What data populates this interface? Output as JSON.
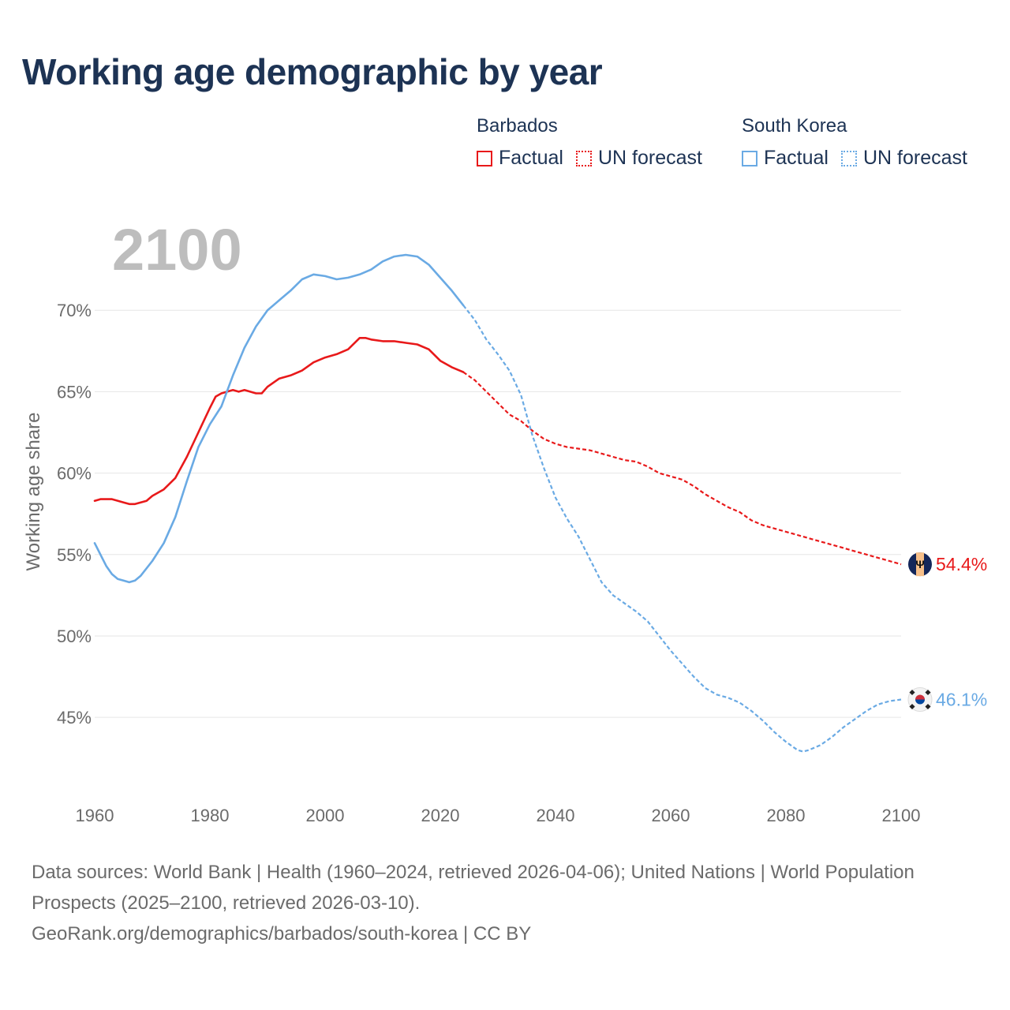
{
  "title": "Working age demographic by year",
  "legend": {
    "groups": [
      {
        "country": "Barbados",
        "factual_label": "Factual",
        "forecast_label": "UN forecast",
        "color": "#e8191a"
      },
      {
        "country": "South Korea",
        "factual_label": "Factual",
        "forecast_label": "UN forecast",
        "color": "#6aaae4"
      }
    ]
  },
  "year_label": "2100",
  "footer": {
    "sources": "Data sources: World Bank | Health (1960–2024, retrieved 2026-04-06); United Nations | World Population Prospects (2025–2100, retrieved 2026-03-10).",
    "credit": "GeoRank.org/demographics/barbados/south-korea | CC BY"
  },
  "chart_data": {
    "type": "line",
    "title": "Working age demographic by year",
    "xlabel": "",
    "ylabel": "Working age share",
    "xlim": [
      1960,
      2100
    ],
    "ylim": [
      40.6,
      75
    ],
    "x_ticks": [
      1960,
      1980,
      2000,
      2020,
      2040,
      2060,
      2080,
      2100
    ],
    "y_ticks": [
      45,
      50,
      55,
      60,
      65,
      70
    ],
    "y_tick_labels": [
      "45%",
      "50%",
      "55%",
      "60%",
      "65%",
      "70%"
    ],
    "grid": true,
    "factual_end_year": 2024,
    "series": [
      {
        "name": "Barbados",
        "color": "#e8191a",
        "flag_icon": "barbados-flag-icon",
        "end_label": "54.4%",
        "points": [
          [
            1960,
            58.3
          ],
          [
            1961,
            58.4
          ],
          [
            1963,
            58.4
          ],
          [
            1965,
            58.2
          ],
          [
            1966,
            58.1
          ],
          [
            1967,
            58.1
          ],
          [
            1969,
            58.3
          ],
          [
            1970,
            58.6
          ],
          [
            1972,
            59.0
          ],
          [
            1974,
            59.7
          ],
          [
            1976,
            61.0
          ],
          [
            1978,
            62.5
          ],
          [
            1980,
            64.0
          ],
          [
            1981,
            64.7
          ],
          [
            1982,
            64.9
          ],
          [
            1984,
            65.1
          ],
          [
            1985,
            65.0
          ],
          [
            1986,
            65.1
          ],
          [
            1988,
            64.9
          ],
          [
            1989,
            64.9
          ],
          [
            1990,
            65.3
          ],
          [
            1992,
            65.8
          ],
          [
            1994,
            66.0
          ],
          [
            1996,
            66.3
          ],
          [
            1998,
            66.8
          ],
          [
            2000,
            67.1
          ],
          [
            2002,
            67.3
          ],
          [
            2004,
            67.6
          ],
          [
            2006,
            68.3
          ],
          [
            2007,
            68.3
          ],
          [
            2008,
            68.2
          ],
          [
            2010,
            68.1
          ],
          [
            2012,
            68.1
          ],
          [
            2014,
            68.0
          ],
          [
            2016,
            67.9
          ],
          [
            2018,
            67.6
          ],
          [
            2020,
            66.9
          ],
          [
            2022,
            66.5
          ],
          [
            2024,
            66.2
          ],
          [
            2026,
            65.7
          ],
          [
            2028,
            65.0
          ],
          [
            2030,
            64.3
          ],
          [
            2032,
            63.6
          ],
          [
            2034,
            63.2
          ],
          [
            2036,
            62.6
          ],
          [
            2038,
            62.1
          ],
          [
            2040,
            61.8
          ],
          [
            2042,
            61.6
          ],
          [
            2044,
            61.5
          ],
          [
            2046,
            61.4
          ],
          [
            2048,
            61.2
          ],
          [
            2050,
            61.0
          ],
          [
            2052,
            60.8
          ],
          [
            2054,
            60.7
          ],
          [
            2056,
            60.4
          ],
          [
            2058,
            60.0
          ],
          [
            2060,
            59.8
          ],
          [
            2062,
            59.6
          ],
          [
            2064,
            59.2
          ],
          [
            2066,
            58.7
          ],
          [
            2068,
            58.3
          ],
          [
            2070,
            57.9
          ],
          [
            2072,
            57.6
          ],
          [
            2074,
            57.1
          ],
          [
            2076,
            56.8
          ],
          [
            2078,
            56.6
          ],
          [
            2080,
            56.4
          ],
          [
            2082,
            56.2
          ],
          [
            2084,
            56.0
          ],
          [
            2086,
            55.8
          ],
          [
            2088,
            55.6
          ],
          [
            2090,
            55.4
          ],
          [
            2092,
            55.2
          ],
          [
            2094,
            55.0
          ],
          [
            2096,
            54.8
          ],
          [
            2098,
            54.6
          ],
          [
            2100,
            54.4
          ]
        ]
      },
      {
        "name": "South Korea",
        "color": "#6aaae4",
        "flag_icon": "south-korea-flag-icon",
        "end_label": "46.1%",
        "points": [
          [
            1960,
            55.7
          ],
          [
            1961,
            55.0
          ],
          [
            1962,
            54.3
          ],
          [
            1963,
            53.8
          ],
          [
            1964,
            53.5
          ],
          [
            1965,
            53.4
          ],
          [
            1966,
            53.3
          ],
          [
            1967,
            53.4
          ],
          [
            1968,
            53.7
          ],
          [
            1970,
            54.6
          ],
          [
            1972,
            55.7
          ],
          [
            1974,
            57.3
          ],
          [
            1976,
            59.5
          ],
          [
            1978,
            61.6
          ],
          [
            1980,
            63.0
          ],
          [
            1982,
            64.1
          ],
          [
            1984,
            66.0
          ],
          [
            1986,
            67.7
          ],
          [
            1988,
            69.0
          ],
          [
            1990,
            70.0
          ],
          [
            1992,
            70.6
          ],
          [
            1994,
            71.2
          ],
          [
            1996,
            71.9
          ],
          [
            1998,
            72.2
          ],
          [
            2000,
            72.1
          ],
          [
            2002,
            71.9
          ],
          [
            2004,
            72.0
          ],
          [
            2006,
            72.2
          ],
          [
            2008,
            72.5
          ],
          [
            2010,
            73.0
          ],
          [
            2012,
            73.3
          ],
          [
            2014,
            73.4
          ],
          [
            2016,
            73.3
          ],
          [
            2018,
            72.8
          ],
          [
            2020,
            72.0
          ],
          [
            2022,
            71.2
          ],
          [
            2024,
            70.3
          ],
          [
            2026,
            69.4
          ],
          [
            2028,
            68.2
          ],
          [
            2030,
            67.3
          ],
          [
            2032,
            66.3
          ],
          [
            2034,
            64.8
          ],
          [
            2036,
            62.3
          ],
          [
            2038,
            60.3
          ],
          [
            2040,
            58.5
          ],
          [
            2042,
            57.2
          ],
          [
            2044,
            56.1
          ],
          [
            2046,
            54.7
          ],
          [
            2048,
            53.3
          ],
          [
            2050,
            52.5
          ],
          [
            2052,
            52.0
          ],
          [
            2054,
            51.5
          ],
          [
            2056,
            50.9
          ],
          [
            2058,
            50.0
          ],
          [
            2060,
            49.1
          ],
          [
            2062,
            48.3
          ],
          [
            2064,
            47.5
          ],
          [
            2066,
            46.8
          ],
          [
            2068,
            46.4
          ],
          [
            2070,
            46.2
          ],
          [
            2072,
            45.9
          ],
          [
            2074,
            45.4
          ],
          [
            2076,
            44.8
          ],
          [
            2078,
            44.1
          ],
          [
            2080,
            43.5
          ],
          [
            2082,
            43.0
          ],
          [
            2083,
            42.9
          ],
          [
            2084,
            43.0
          ],
          [
            2086,
            43.3
          ],
          [
            2088,
            43.8
          ],
          [
            2090,
            44.4
          ],
          [
            2092,
            44.9
          ],
          [
            2094,
            45.4
          ],
          [
            2096,
            45.8
          ],
          [
            2098,
            46.0
          ],
          [
            2100,
            46.1
          ]
        ]
      }
    ]
  }
}
